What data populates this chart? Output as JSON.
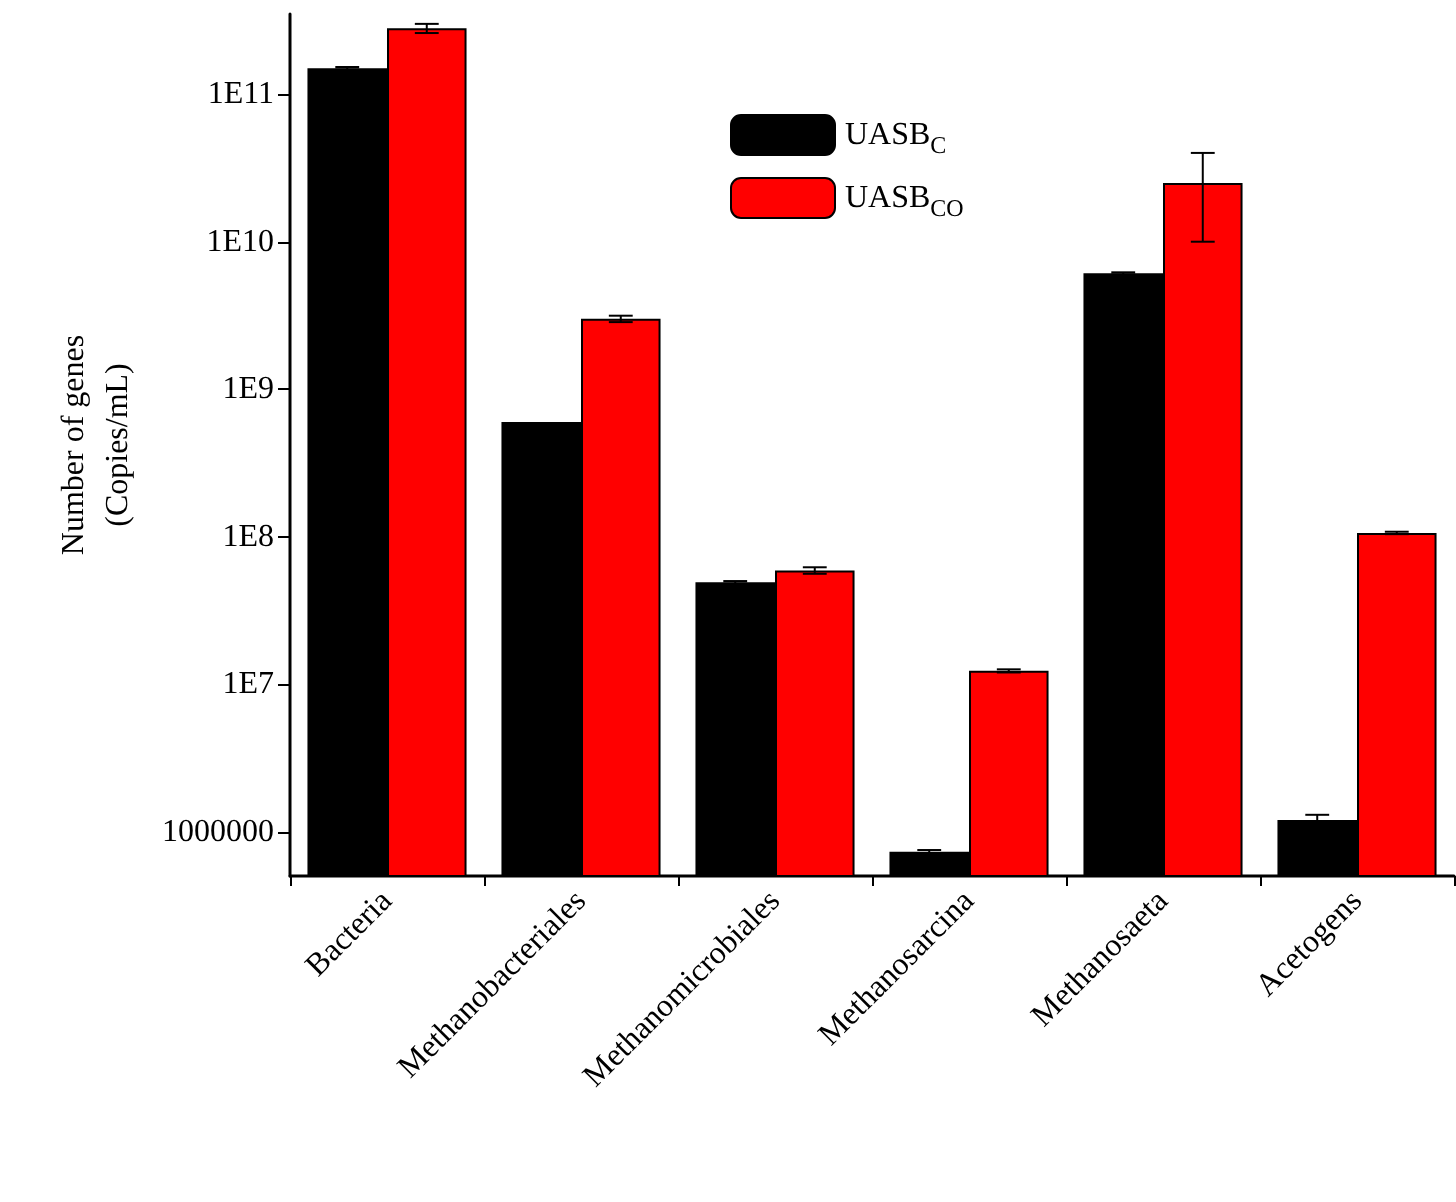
{
  "chart_data": {
    "type": "bar",
    "ylabel": "Number of genes\n(Copies/mL)",
    "categories": [
      "Bacteria",
      "Methanobacteriales",
      "Methanomicrobiales",
      "Methanosarcina",
      "Methanosaeta",
      "Acetogens"
    ],
    "series": [
      {
        "name": "UASB$_{C}$",
        "color": "#000000",
        "values": [
          150000000000.0,
          600000000.0,
          49000000.0,
          730000.0,
          6100000000.0,
          1200000.0
        ],
        "errors": [
          3000000000.0,
          null,
          1000000.0,
          20000.0,
          100000000.0,
          100000.0
        ]
      },
      {
        "name": "UASB$_{CO}$",
        "color": "#ff0000",
        "values": [
          280000000000.0,
          3000000000.0,
          59000000.0,
          12300000.0,
          25000000000.0,
          106000000.0
        ],
        "errors": [
          20000000000.0,
          150000000.0,
          3000000.0,
          300000.0,
          [
            10000000000.0,
            40000000000.0
          ],
          2000000.0
        ]
      }
    ],
    "log": true,
    "ylim": [
      500000.0,
      350000000000.0
    ],
    "yticks": [
      {
        "value": 1000000.0,
        "label": "1000000"
      },
      {
        "value": 10000000.0,
        "label": "1E7"
      },
      {
        "value": 100000000.0,
        "label": "1E8"
      },
      {
        "value": 1000000000.0,
        "label": "1E9"
      },
      {
        "value": 10000000000.0,
        "label": "1E10"
      },
      {
        "value": 100000000000.0,
        "label": "1E11"
      }
    ],
    "grid": false,
    "legend": "top"
  }
}
